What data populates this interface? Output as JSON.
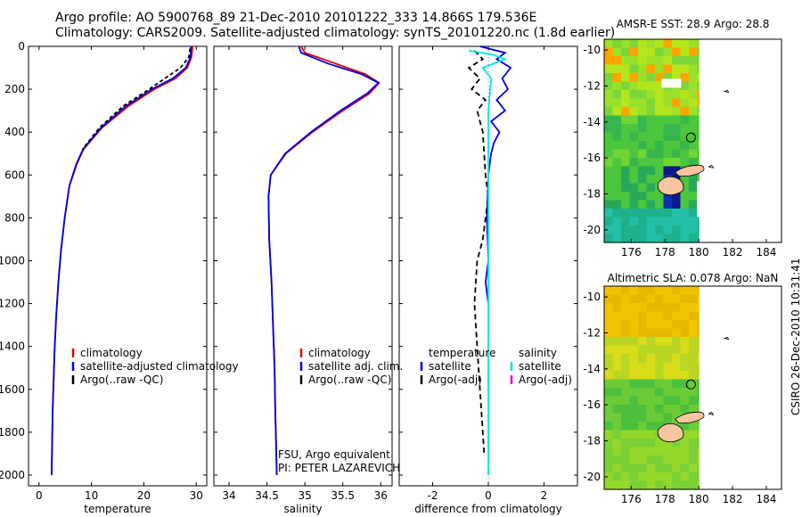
{
  "header": {
    "line1": "Argo profile: AO 5900768_89 21-Dec-2010 20101222_333 14.866S 179.536E",
    "line2": "Climatology: CARS2009. Satellite-adjusted climatology: synTS_20101220.nc (1.8d earlier)"
  },
  "timestamp": "CSIRO 26-Dec-2010 10:31:41",
  "colors": {
    "clim": "#e00000",
    "sat": "#0000e0",
    "argo": "#000000",
    "sal_sat": "#00e5e5",
    "sal_argo": "#e000e0"
  },
  "chart_data": [
    {
      "type": "line",
      "id": "temperature",
      "xlabel": "temperature",
      "ylabel": "",
      "xlim": [
        -2,
        32
      ],
      "ylim": [
        2050,
        0
      ],
      "xticks": [
        0,
        10,
        20,
        30
      ],
      "yticks": [
        0,
        200,
        400,
        600,
        800,
        1000,
        1200,
        1400,
        1600,
        1800,
        2000
      ],
      "legend": [
        "climatology",
        "satellite-adjusted climatology",
        "Argo(..raw -QC)"
      ],
      "series": [
        {
          "name": "climatology",
          "color": "#e00000",
          "dash": "",
          "x": [
            29.3,
            29.1,
            28.3,
            26,
            22,
            17,
            12,
            8.5,
            7.2,
            5.8,
            4.9,
            4.2,
            3.7,
            3.3,
            3.0,
            2.8,
            2.6,
            2.5,
            2.4
          ],
          "y": [
            0,
            50,
            100,
            150,
            200,
            280,
            380,
            480,
            550,
            650,
            800,
            950,
            1100,
            1250,
            1400,
            1550,
            1700,
            1850,
            2000
          ]
        },
        {
          "name": "satellite-adjusted climatology",
          "color": "#0000e0",
          "dash": "",
          "x": [
            29.0,
            28.9,
            28.0,
            25.5,
            21.5,
            16.5,
            11.8,
            8.4,
            7.1,
            5.8,
            4.9,
            4.2,
            3.7,
            3.3,
            3.0,
            2.8,
            2.6,
            2.5,
            2.4
          ],
          "y": [
            0,
            50,
            100,
            150,
            200,
            280,
            380,
            480,
            550,
            650,
            800,
            950,
            1100,
            1250,
            1400,
            1550,
            1700,
            1850,
            2000
          ]
        },
        {
          "name": "Argo(..raw -QC)",
          "color": "#000000",
          "dash": "4,3",
          "x": [
            28.8,
            28.6,
            27.0,
            24.0,
            21.0,
            16.0,
            11.5,
            8.3
          ],
          "y": [
            10,
            50,
            100,
            150,
            200,
            280,
            380,
            480
          ]
        }
      ]
    },
    {
      "type": "line",
      "id": "salinity",
      "xlabel": "salinity",
      "ylabel": "",
      "xlim": [
        33.8,
        36.15
      ],
      "ylim": [
        2050,
        0
      ],
      "xticks": [
        34,
        34.5,
        35,
        35.5,
        36
      ],
      "xticklabels": [
        "34",
        "34.5",
        "35",
        "35.5",
        "36"
      ],
      "legend": [
        "climatology",
        "satellite adj. clim.",
        "Argo(..raw -QC)"
      ],
      "annotations": [
        "FSU, Argo equivalent",
        "PI: PETER LAZAREVICH"
      ],
      "series": [
        {
          "name": "climatology",
          "color": "#e00000",
          "dash": "",
          "x": [
            34.95,
            35.0,
            35.4,
            35.8,
            35.98,
            35.85,
            35.5,
            35.1,
            34.75,
            34.55,
            34.52,
            34.53,
            34.56,
            34.58,
            34.6,
            34.61,
            34.62,
            34.63
          ],
          "y": [
            0,
            30,
            80,
            130,
            170,
            220,
            300,
            400,
            500,
            600,
            700,
            900,
            1100,
            1300,
            1500,
            1700,
            1850,
            2000
          ]
        },
        {
          "name": "satellite adj. clim.",
          "color": "#0000e0",
          "dash": "",
          "x": [
            34.92,
            34.95,
            35.3,
            35.75,
            35.97,
            35.82,
            35.47,
            35.08,
            34.74,
            34.55,
            34.52,
            34.53,
            34.56,
            34.58,
            34.6,
            34.61,
            34.62,
            34.63
          ],
          "y": [
            0,
            30,
            80,
            130,
            170,
            220,
            300,
            400,
            500,
            600,
            700,
            900,
            1100,
            1300,
            1500,
            1700,
            1850,
            2000
          ]
        }
      ]
    },
    {
      "type": "line",
      "id": "difference",
      "xlabel": "difference from climatology",
      "ylabel": "",
      "xlim": [
        -3.2,
        3.2
      ],
      "ylim": [
        2050,
        0
      ],
      "xticks": [
        -2,
        0,
        2
      ],
      "legend_left": [
        "temperature",
        "satellite",
        "Argo(-adj)"
      ],
      "legend_right": [
        "salinity",
        "satellite",
        "Argo(-adj)"
      ],
      "series": [
        {
          "name": "temperature satellite",
          "color": "#0000e0",
          "dash": "",
          "x": [
            -0.3,
            0.6,
            0.3,
            0.8,
            0.5,
            0.7,
            0.3,
            0.6,
            0.1,
            0.4,
            0.2,
            0.1,
            0.0,
            -0.05,
            0.0,
            -0.1,
            0.0
          ],
          "y": [
            0,
            30,
            60,
            100,
            150,
            200,
            250,
            300,
            350,
            400,
            450,
            500,
            600,
            800,
            1000,
            1100,
            1200
          ]
        },
        {
          "name": "temperature Argo(-adj)",
          "color": "#000000",
          "dash": "6,4",
          "x": [
            -0.5,
            -0.2,
            -0.7,
            -0.3,
            -0.6,
            -0.1,
            -0.4,
            -0.3,
            -0.2,
            -0.15,
            -0.1,
            0.0,
            -0.1,
            -0.2,
            -0.4,
            -0.5,
            -0.4,
            -0.3,
            -0.2,
            -0.15
          ],
          "y": [
            20,
            60,
            100,
            150,
            200,
            250,
            300,
            350,
            400,
            500,
            600,
            700,
            800,
            900,
            1000,
            1200,
            1400,
            1600,
            1800,
            1900
          ]
        },
        {
          "name": "salinity satellite",
          "color": "#00e5e5",
          "dash": "",
          "x": [
            -0.7,
            0.2,
            0.6,
            -0.2,
            0.1,
            0.0,
            0.0,
            0.0,
            0.0
          ],
          "y": [
            20,
            40,
            60,
            100,
            150,
            300,
            600,
            1200,
            2000
          ]
        }
      ]
    }
  ],
  "maps": [
    {
      "id": "sst",
      "title": "AMSR-E SST: 28.9 Argo: 28.8",
      "xlim": [
        174.4,
        184.9
      ],
      "ylim": [
        -20.7,
        -9.4
      ],
      "xticks": [
        176,
        178,
        180,
        182,
        184
      ],
      "yticks": [
        -10,
        -12,
        -14,
        -16,
        -18,
        -20
      ],
      "argo_position": {
        "lon": 179.536,
        "lat": -14.866
      }
    },
    {
      "id": "sla",
      "title": "Altimetric SLA: 0.078 Argo: NaN",
      "xlim": [
        174.4,
        184.9
      ],
      "ylim": [
        -20.7,
        -9.4
      ],
      "xticks": [
        176,
        178,
        180,
        182,
        184
      ],
      "yticks": [
        -10,
        -12,
        -14,
        -16,
        -18,
        -20
      ],
      "argo_position": {
        "lon": 179.536,
        "lat": -14.866
      }
    }
  ]
}
